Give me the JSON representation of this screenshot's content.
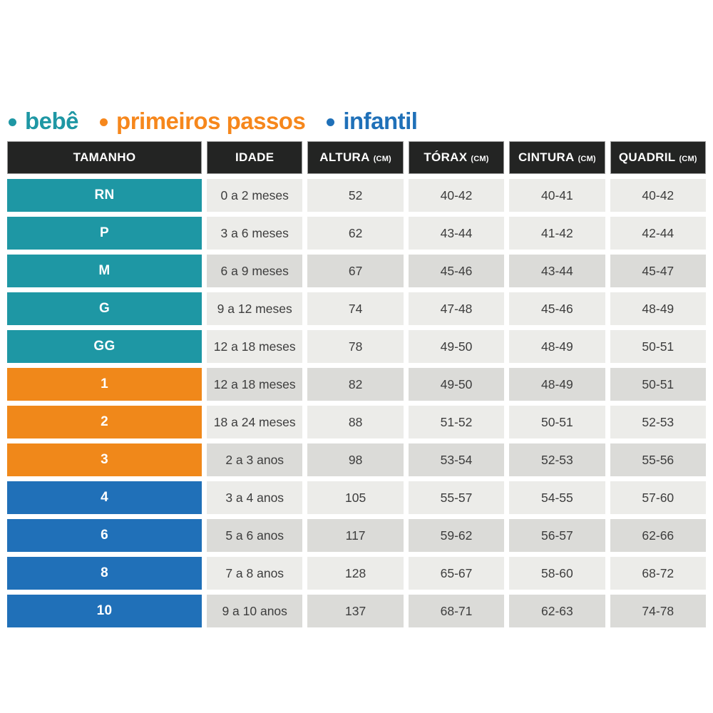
{
  "chart_data": {
    "type": "table",
    "legend": [
      {
        "label": "bebê",
        "color": "#1E97A4"
      },
      {
        "label": "primeiros passos",
        "color": "#F6871C"
      },
      {
        "label": "infantil",
        "color": "#1F70B8"
      }
    ],
    "columns": [
      {
        "key": "size",
        "label": "TAMANHO",
        "unit": ""
      },
      {
        "key": "idade",
        "label": "IDADE",
        "unit": ""
      },
      {
        "key": "altura",
        "label": "ALTURA",
        "unit": "(CM)"
      },
      {
        "key": "torax",
        "label": "TÓRAX",
        "unit": "(CM)"
      },
      {
        "key": "cintura",
        "label": "CINTURA",
        "unit": "(CM)"
      },
      {
        "key": "quadril",
        "label": "QUADRIL",
        "unit": "(CM)"
      }
    ],
    "rows": [
      {
        "size": "RN",
        "category": "bebe",
        "shade": "light",
        "idade": "0 a 2 meses",
        "altura": "52",
        "torax": "40-42",
        "cintura": "40-41",
        "quadril": "40-42"
      },
      {
        "size": "P",
        "category": "bebe",
        "shade": "light",
        "idade": "3 a 6 meses",
        "altura": "62",
        "torax": "43-44",
        "cintura": "41-42",
        "quadril": "42-44"
      },
      {
        "size": "M",
        "category": "bebe",
        "shade": "dark",
        "idade": "6 a 9 meses",
        "altura": "67",
        "torax": "45-46",
        "cintura": "43-44",
        "quadril": "45-47"
      },
      {
        "size": "G",
        "category": "bebe",
        "shade": "light",
        "idade": "9 a 12 meses",
        "altura": "74",
        "torax": "47-48",
        "cintura": "45-46",
        "quadril": "48-49"
      },
      {
        "size": "GG",
        "category": "bebe",
        "shade": "light",
        "idade": "12 a 18 meses",
        "altura": "78",
        "torax": "49-50",
        "cintura": "48-49",
        "quadril": "50-51"
      },
      {
        "size": "1",
        "category": "primeiros_passos",
        "shade": "dark",
        "idade": "12 a 18 meses",
        "altura": "82",
        "torax": "49-50",
        "cintura": "48-49",
        "quadril": "50-51"
      },
      {
        "size": "2",
        "category": "primeiros_passos",
        "shade": "light",
        "idade": "18 a 24 meses",
        "altura": "88",
        "torax": "51-52",
        "cintura": "50-51",
        "quadril": "52-53"
      },
      {
        "size": "3",
        "category": "primeiros_passos",
        "shade": "dark",
        "idade": "2 a 3 anos",
        "altura": "98",
        "torax": "53-54",
        "cintura": "52-53",
        "quadril": "55-56"
      },
      {
        "size": "4",
        "category": "infantil",
        "shade": "light",
        "idade": "3 a 4 anos",
        "altura": "105",
        "torax": "55-57",
        "cintura": "54-55",
        "quadril": "57-60"
      },
      {
        "size": "6",
        "category": "infantil",
        "shade": "dark",
        "idade": "5 a 6 anos",
        "altura": "117",
        "torax": "59-62",
        "cintura": "56-57",
        "quadril": "62-66"
      },
      {
        "size": "8",
        "category": "infantil",
        "shade": "light",
        "idade": "7 a 8 anos",
        "altura": "128",
        "torax": "65-67",
        "cintura": "58-60",
        "quadril": "68-72"
      },
      {
        "size": "10",
        "category": "infantil",
        "shade": "dark",
        "idade": "9 a 10 anos",
        "altura": "137",
        "torax": "68-71",
        "cintura": "62-63",
        "quadril": "74-78"
      }
    ]
  },
  "colors": {
    "bebe": "#1E97A4",
    "primeiros_passos": "#F0881A",
    "infantil": "#2070B8",
    "header_bg": "#232423",
    "header_border": "#9B9B9B",
    "row_light": "#ECECE9",
    "row_dark": "#DBDBD8",
    "text_dark": "#3D3D3D",
    "page_bg": "#FFFFFF"
  }
}
